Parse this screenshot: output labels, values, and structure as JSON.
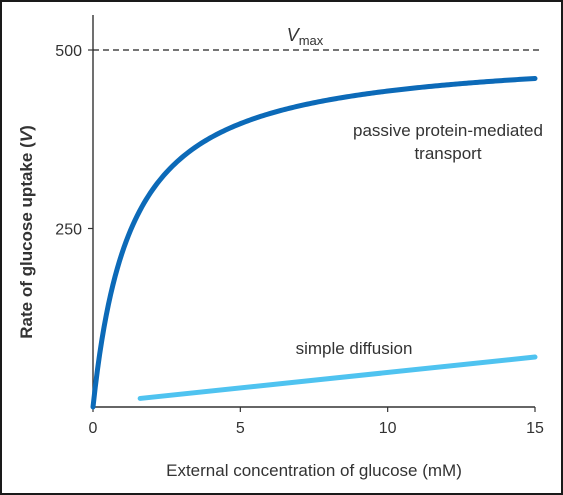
{
  "chart_data": {
    "type": "line",
    "title": "",
    "xlabel": "External concentration of glucose (mM)",
    "ylabel_main": "Rate of glucose uptake (",
    "ylabel_var": "V",
    "ylabel_close": ")",
    "xlim": [
      0,
      15
    ],
    "ylim": [
      0,
      500
    ],
    "xticks": [
      0,
      5,
      10,
      15
    ],
    "yticks": [
      250,
      500
    ],
    "xtick_labels": [
      "0",
      "5",
      "10",
      "15"
    ],
    "ytick_labels": [
      "250",
      "500"
    ],
    "grid": false,
    "vmax": {
      "value": 500,
      "label_main": "V",
      "label_sub": "max"
    },
    "series": [
      {
        "name": "passive protein-mediated transport",
        "label_line1": "passive protein-mediated",
        "label_line2": "transport",
        "color": "#0c6ab8",
        "model": "michaelis-menten",
        "vmax": 500,
        "km": 1.3,
        "x_range": [
          0,
          15
        ]
      },
      {
        "name": "simple diffusion",
        "label": "simple diffusion",
        "color": "#4fc3f0",
        "points": [
          [
            1.6,
            12
          ],
          [
            15,
            70
          ]
        ]
      }
    ]
  }
}
